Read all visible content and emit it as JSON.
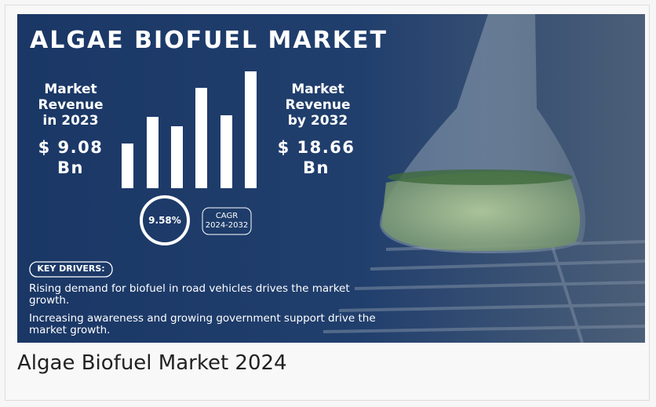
{
  "infographic": {
    "title": "ALGAE BIOFUEL MARKET",
    "left": {
      "label": [
        "Market",
        "Revenue",
        "in 2023"
      ],
      "value": [
        "$ 9.08",
        "Bn"
      ]
    },
    "right": {
      "label": [
        "Market",
        "Revenue",
        "by 2032"
      ],
      "value": [
        "$ 18.66",
        "Bn"
      ]
    },
    "cagr": {
      "rate": "9.58%",
      "label": [
        "CAGR",
        "2024-2032"
      ]
    },
    "key_drivers": {
      "heading": "KEY DRIVERS:",
      "items": [
        "Rising demand for biofuel in road vehicles drives the market growth.",
        "Increasing awareness and growing government support drive the market growth."
      ]
    }
  },
  "caption": "Algae Biofuel Market 2024"
}
